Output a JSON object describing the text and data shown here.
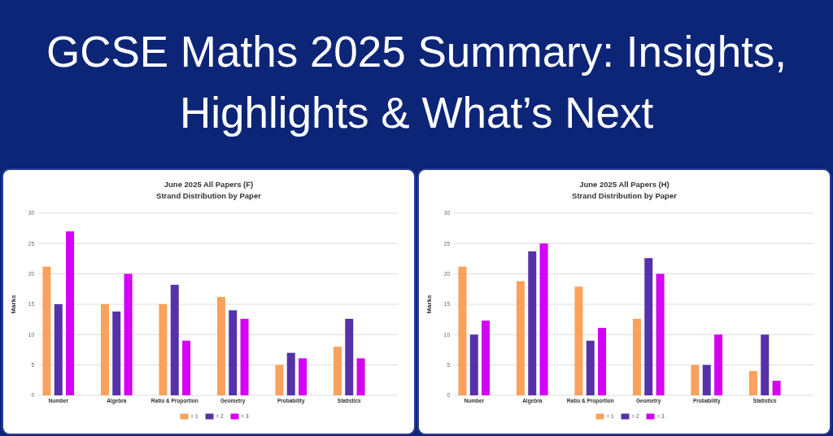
{
  "chart_data": [
    {
      "type": "other",
      "title": "GCSE Maths 2025 Summary: Insights, Highlights & What’s Next"
    },
    {
      "type": "bar",
      "title": "June 2025 All Papers (F)",
      "subtitle": "Strand Distribution by Paper",
      "ylabel": "Marks",
      "categories": [
        "Number",
        "Algebra",
        "Ratio & Proportion",
        "Geometry",
        "Probability",
        "Statistics"
      ],
      "series": [
        {
          "name": "= 1",
          "color": "#fba15b",
          "values": [
            21.2,
            15,
            15,
            16.2,
            5,
            8
          ]
        },
        {
          "name": "= 2",
          "color": "#5632a8",
          "values": [
            15,
            13.8,
            18.2,
            14,
            7,
            12.6
          ]
        },
        {
          "name": "= 3",
          "color": "#d400f5",
          "values": [
            27,
            20,
            9,
            12.6,
            6.1,
            6.1
          ]
        }
      ],
      "ylim": [
        0,
        30
      ],
      "yticks": [
        0,
        5,
        10,
        15,
        20,
        25,
        30
      ],
      "grid": "y",
      "legend": "bottom"
    },
    {
      "type": "bar",
      "title": "June 2025 All Papers (H)",
      "subtitle": "Strand Distribution by Paper",
      "ylabel": "Marks",
      "categories": [
        "Number",
        "Algebra",
        "Ratio & Proportion",
        "Geometry",
        "Probability",
        "Statistics"
      ],
      "series": [
        {
          "name": "= 1",
          "color": "#fba15b",
          "values": [
            21.2,
            18.8,
            17.9,
            12.6,
            5,
            4
          ]
        },
        {
          "name": "= 2",
          "color": "#5632a8",
          "values": [
            10,
            23.7,
            9,
            22.6,
            5,
            10
          ]
        },
        {
          "name": "= 3",
          "color": "#d400f5",
          "values": [
            12.3,
            25,
            11.1,
            20,
            10,
            2.4
          ]
        }
      ],
      "ylim": [
        0,
        30
      ],
      "yticks": [
        0,
        5,
        10,
        15,
        20,
        25,
        30
      ],
      "grid": "y",
      "legend": "bottom"
    }
  ]
}
